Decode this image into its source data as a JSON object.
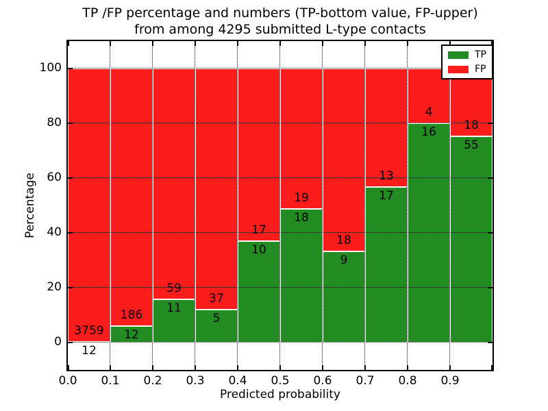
{
  "title": {
    "line1": "TP /FP percentage and numbers (TP-bottom value, FP-upper)",
    "line2": "from among 4295 submitted L-type contacts"
  },
  "chart_data": {
    "type": "bar",
    "variant": "stacked-percentage",
    "title": "TP /FP percentage and numbers (TP-bottom value, FP-upper)\nfrom among 4295 submitted L-type contacts",
    "xlabel": "Predicted probability",
    "ylabel": "Percentage",
    "xlim": [
      0.0,
      1.0
    ],
    "ylim": [
      -10,
      110
    ],
    "bin_width": 0.1,
    "bin_starts": [
      0.0,
      0.1,
      0.2,
      0.3,
      0.4,
      0.5,
      0.6,
      0.7,
      0.8,
      0.9
    ],
    "xticks": [
      "0.0",
      "0.1",
      "0.2",
      "0.3",
      "0.4",
      "0.5",
      "0.6",
      "0.7",
      "0.8",
      "0.9"
    ],
    "yticks": [
      0,
      20,
      40,
      60,
      80,
      100
    ],
    "grid": "dotted",
    "legend_position": "upper right",
    "series": [
      {
        "name": "TP",
        "color": "#228B22",
        "values": [
          12,
          12,
          11,
          5,
          10,
          18,
          9,
          17,
          16,
          55
        ]
      },
      {
        "name": "FP",
        "color": "#fb1c1c",
        "values": [
          3759,
          186,
          59,
          37,
          17,
          19,
          18,
          13,
          4,
          18
        ]
      }
    ],
    "tp_percent_of_bin": [
      0.3,
      6.1,
      15.7,
      11.9,
      37.0,
      48.6,
      33.3,
      56.7,
      80.0,
      75.3
    ],
    "total_submitted": 4295,
    "annotation_note": "TP count drawn just below the TP/FP boundary, FP count just above it"
  }
}
